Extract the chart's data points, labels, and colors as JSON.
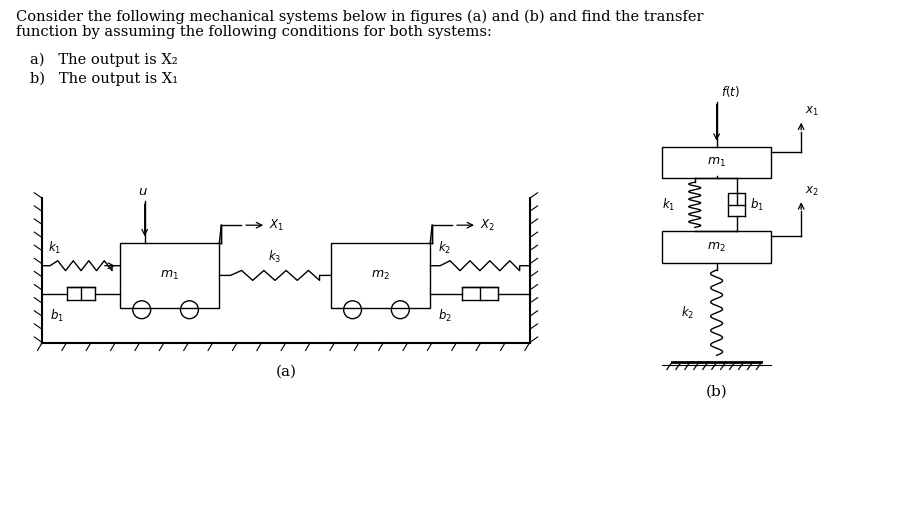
{
  "title_line1": "Consider the following mechanical systems below in figures (a) and (b) and find the transfer",
  "title_line2": "function by assuming the following conditions for both systems:",
  "item_a": "a)   The output is X₂",
  "item_b": "b)   The output is X₁",
  "label_a": "(a)",
  "label_b": "(b)",
  "bg_color": "#ffffff",
  "line_color": "#000000",
  "font_size_title": 10.5,
  "font_size_items": 10.5,
  "font_size_label": 11,
  "font_size_small": 8.5
}
